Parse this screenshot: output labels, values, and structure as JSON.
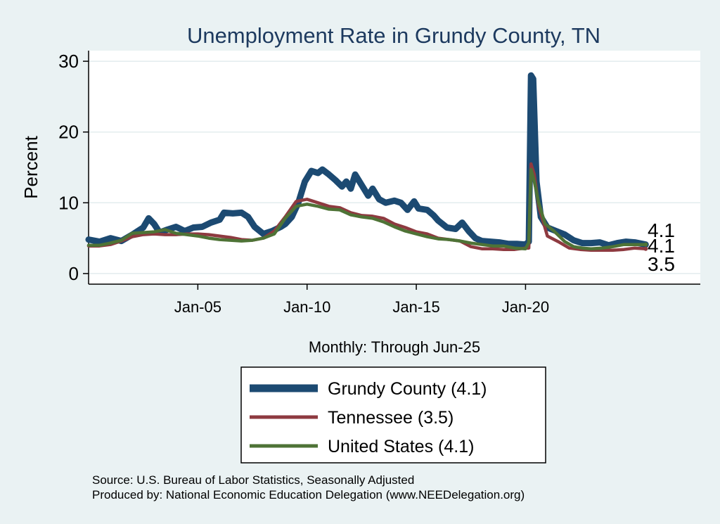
{
  "chart_data": {
    "type": "line",
    "title": "Unemployment Rate in Grundy  County, TN",
    "ylabel": "Percent",
    "xlabel": "Monthly: Through Jun-25",
    "ylim": [
      -1.5,
      31.5
    ],
    "xlim": [
      2000.0,
      2028.0
    ],
    "yticks": [
      0,
      10,
      20,
      30
    ],
    "xticks": [
      {
        "value": 2005,
        "label": "Jan-05"
      },
      {
        "value": 2010,
        "label": "Jan-10"
      },
      {
        "value": 2015,
        "label": "Jan-15"
      },
      {
        "value": 2020,
        "label": "Jan-20"
      }
    ],
    "grid": true,
    "series": [
      {
        "name": "Grundy  County",
        "legend": "Grundy  County (4.1)",
        "color": "#1c4a72",
        "end_value": "4.1",
        "points": [
          [
            2000.0,
            4.8
          ],
          [
            2000.5,
            4.5
          ],
          [
            2001.0,
            5.0
          ],
          [
            2001.5,
            4.6
          ],
          [
            2002.0,
            5.5
          ],
          [
            2002.5,
            6.5
          ],
          [
            2002.75,
            7.8
          ],
          [
            2003.0,
            7.0
          ],
          [
            2003.25,
            5.8
          ],
          [
            2003.6,
            6.2
          ],
          [
            2004.0,
            6.6
          ],
          [
            2004.4,
            6.0
          ],
          [
            2004.8,
            6.5
          ],
          [
            2005.2,
            6.6
          ],
          [
            2005.6,
            7.2
          ],
          [
            2006.0,
            7.6
          ],
          [
            2006.2,
            8.6
          ],
          [
            2006.6,
            8.5
          ],
          [
            2007.0,
            8.6
          ],
          [
            2007.3,
            8.0
          ],
          [
            2007.6,
            6.6
          ],
          [
            2008.0,
            5.6
          ],
          [
            2008.4,
            6.0
          ],
          [
            2008.8,
            6.6
          ],
          [
            2009.0,
            7.0
          ],
          [
            2009.3,
            8.0
          ],
          [
            2009.6,
            10.0
          ],
          [
            2009.9,
            13.0
          ],
          [
            2010.2,
            14.5
          ],
          [
            2010.5,
            14.2
          ],
          [
            2010.7,
            14.7
          ],
          [
            2011.0,
            14.0
          ],
          [
            2011.3,
            13.2
          ],
          [
            2011.6,
            12.3
          ],
          [
            2011.8,
            13.0
          ],
          [
            2012.0,
            12.0
          ],
          [
            2012.2,
            14.0
          ],
          [
            2012.5,
            12.5
          ],
          [
            2012.8,
            11.0
          ],
          [
            2013.0,
            12.0
          ],
          [
            2013.3,
            10.5
          ],
          [
            2013.6,
            10.0
          ],
          [
            2014.0,
            10.3
          ],
          [
            2014.3,
            10.0
          ],
          [
            2014.6,
            9.0
          ],
          [
            2014.9,
            10.2
          ],
          [
            2015.1,
            9.2
          ],
          [
            2015.5,
            9.0
          ],
          [
            2015.8,
            8.2
          ],
          [
            2016.0,
            7.5
          ],
          [
            2016.4,
            6.5
          ],
          [
            2016.8,
            6.3
          ],
          [
            2017.1,
            7.2
          ],
          [
            2017.4,
            6.0
          ],
          [
            2017.7,
            5.0
          ],
          [
            2018.0,
            4.6
          ],
          [
            2018.4,
            4.5
          ],
          [
            2018.8,
            4.4
          ],
          [
            2019.2,
            4.2
          ],
          [
            2019.6,
            4.2
          ],
          [
            2020.0,
            4.1
          ],
          [
            2020.15,
            4.5
          ],
          [
            2020.25,
            28.0
          ],
          [
            2020.35,
            27.5
          ],
          [
            2020.5,
            13.0
          ],
          [
            2020.7,
            8.0
          ],
          [
            2021.0,
            6.5
          ],
          [
            2021.4,
            6.0
          ],
          [
            2021.8,
            5.5
          ],
          [
            2022.2,
            4.7
          ],
          [
            2022.6,
            4.3
          ],
          [
            2023.0,
            4.3
          ],
          [
            2023.4,
            4.4
          ],
          [
            2023.8,
            4.0
          ],
          [
            2024.2,
            4.3
          ],
          [
            2024.6,
            4.5
          ],
          [
            2025.0,
            4.4
          ],
          [
            2025.5,
            4.1
          ]
        ]
      },
      {
        "name": "Tennessee",
        "legend": "Tennessee (3.5)",
        "color": "#8e3a40",
        "end_value": "3.5",
        "points": [
          [
            2000.0,
            3.9
          ],
          [
            2000.5,
            3.9
          ],
          [
            2001.0,
            4.1
          ],
          [
            2001.5,
            4.6
          ],
          [
            2002.0,
            5.2
          ],
          [
            2002.5,
            5.5
          ],
          [
            2003.0,
            5.6
          ],
          [
            2003.5,
            5.5
          ],
          [
            2004.0,
            5.5
          ],
          [
            2004.5,
            5.6
          ],
          [
            2005.0,
            5.6
          ],
          [
            2005.5,
            5.5
          ],
          [
            2006.0,
            5.3
          ],
          [
            2006.5,
            5.1
          ],
          [
            2007.0,
            4.8
          ],
          [
            2007.5,
            4.7
          ],
          [
            2008.0,
            5.0
          ],
          [
            2008.5,
            6.0
          ],
          [
            2009.0,
            8.0
          ],
          [
            2009.5,
            10.2
          ],
          [
            2010.0,
            10.5
          ],
          [
            2010.5,
            10.0
          ],
          [
            2011.0,
            9.5
          ],
          [
            2011.5,
            9.3
          ],
          [
            2012.0,
            8.6
          ],
          [
            2012.5,
            8.2
          ],
          [
            2013.0,
            8.1
          ],
          [
            2013.5,
            7.8
          ],
          [
            2014.0,
            7.0
          ],
          [
            2014.5,
            6.5
          ],
          [
            2015.0,
            5.9
          ],
          [
            2015.5,
            5.6
          ],
          [
            2016.0,
            5.0
          ],
          [
            2016.5,
            4.8
          ],
          [
            2017.0,
            4.6
          ],
          [
            2017.5,
            3.8
          ],
          [
            2018.0,
            3.5
          ],
          [
            2018.5,
            3.5
          ],
          [
            2019.0,
            3.4
          ],
          [
            2019.5,
            3.4
          ],
          [
            2020.0,
            3.6
          ],
          [
            2020.15,
            3.6
          ],
          [
            2020.25,
            15.5
          ],
          [
            2020.4,
            14.0
          ],
          [
            2020.6,
            9.5
          ],
          [
            2021.0,
            5.3
          ],
          [
            2021.5,
            4.5
          ],
          [
            2022.0,
            3.6
          ],
          [
            2022.5,
            3.4
          ],
          [
            2023.0,
            3.3
          ],
          [
            2023.5,
            3.3
          ],
          [
            2024.0,
            3.3
          ],
          [
            2024.5,
            3.4
          ],
          [
            2025.0,
            3.6
          ],
          [
            2025.5,
            3.5
          ]
        ]
      },
      {
        "name": "United States",
        "legend": "United States (4.1)",
        "color": "#4e7336",
        "end_value": "4.1",
        "points": [
          [
            2000.0,
            4.0
          ],
          [
            2000.5,
            4.0
          ],
          [
            2001.0,
            4.3
          ],
          [
            2001.5,
            4.7
          ],
          [
            2002.0,
            5.7
          ],
          [
            2002.5,
            5.8
          ],
          [
            2003.0,
            5.9
          ],
          [
            2003.5,
            6.2
          ],
          [
            2004.0,
            5.7
          ],
          [
            2004.5,
            5.5
          ],
          [
            2005.0,
            5.3
          ],
          [
            2005.5,
            5.0
          ],
          [
            2006.0,
            4.8
          ],
          [
            2006.5,
            4.7
          ],
          [
            2007.0,
            4.6
          ],
          [
            2007.5,
            4.7
          ],
          [
            2008.0,
            5.0
          ],
          [
            2008.5,
            5.6
          ],
          [
            2009.0,
            7.8
          ],
          [
            2009.5,
            9.5
          ],
          [
            2010.0,
            9.8
          ],
          [
            2010.5,
            9.5
          ],
          [
            2011.0,
            9.1
          ],
          [
            2011.5,
            9.0
          ],
          [
            2012.0,
            8.3
          ],
          [
            2012.5,
            8.0
          ],
          [
            2013.0,
            7.8
          ],
          [
            2013.5,
            7.3
          ],
          [
            2014.0,
            6.6
          ],
          [
            2014.5,
            6.0
          ],
          [
            2015.0,
            5.6
          ],
          [
            2015.5,
            5.2
          ],
          [
            2016.0,
            4.9
          ],
          [
            2016.5,
            4.8
          ],
          [
            2017.0,
            4.6
          ],
          [
            2017.5,
            4.3
          ],
          [
            2018.0,
            4.1
          ],
          [
            2018.5,
            3.9
          ],
          [
            2019.0,
            3.9
          ],
          [
            2019.5,
            3.6
          ],
          [
            2020.0,
            3.5
          ],
          [
            2020.15,
            4.4
          ],
          [
            2020.25,
            14.7
          ],
          [
            2020.4,
            13.0
          ],
          [
            2020.6,
            10.0
          ],
          [
            2020.9,
            7.0
          ],
          [
            2021.3,
            6.0
          ],
          [
            2021.8,
            4.5
          ],
          [
            2022.2,
            3.8
          ],
          [
            2022.6,
            3.6
          ],
          [
            2023.0,
            3.5
          ],
          [
            2023.5,
            3.6
          ],
          [
            2024.0,
            3.8
          ],
          [
            2024.5,
            4.1
          ],
          [
            2025.0,
            4.1
          ],
          [
            2025.5,
            4.1
          ]
        ]
      }
    ],
    "end_labels": [
      "4.1",
      "4.1",
      "3.5"
    ]
  },
  "footer": {
    "source": "Source: U.S. Bureau of Labor Statistics, Seasonally Adjusted",
    "produced_by": "Produced by: National Economic Education Delegation (www.NEEDelegation.org)"
  }
}
